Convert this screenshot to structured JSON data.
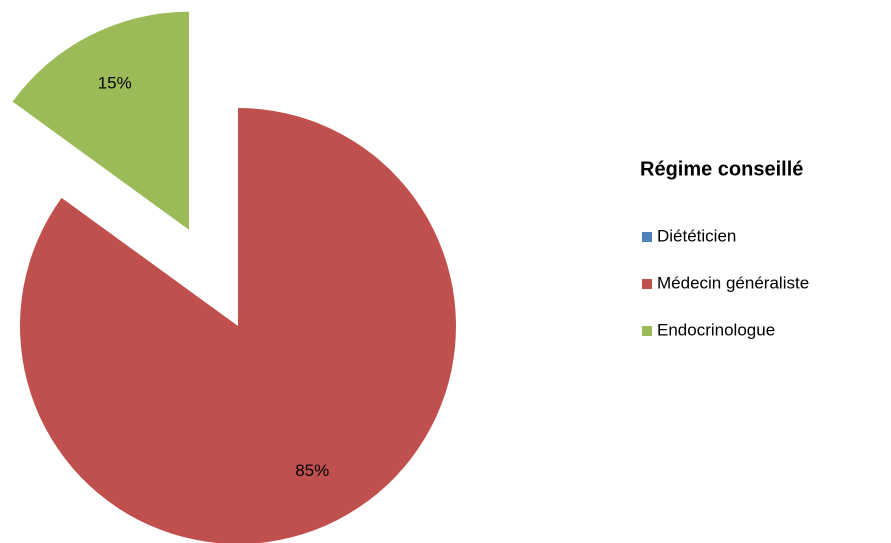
{
  "chart_data": {
    "type": "pie",
    "legend_title": "Régime conseillé",
    "categories": [
      "Diététicien",
      "Médecin généraliste",
      "Endocrinologue"
    ],
    "values": [
      0,
      85,
      15
    ],
    "value_labels": [
      null,
      "85%",
      "15%"
    ],
    "colors": [
      "#4f81bd",
      "#c0504d",
      "#9bbb59"
    ],
    "exploded": "Endocrinologue",
    "legend": "right"
  }
}
